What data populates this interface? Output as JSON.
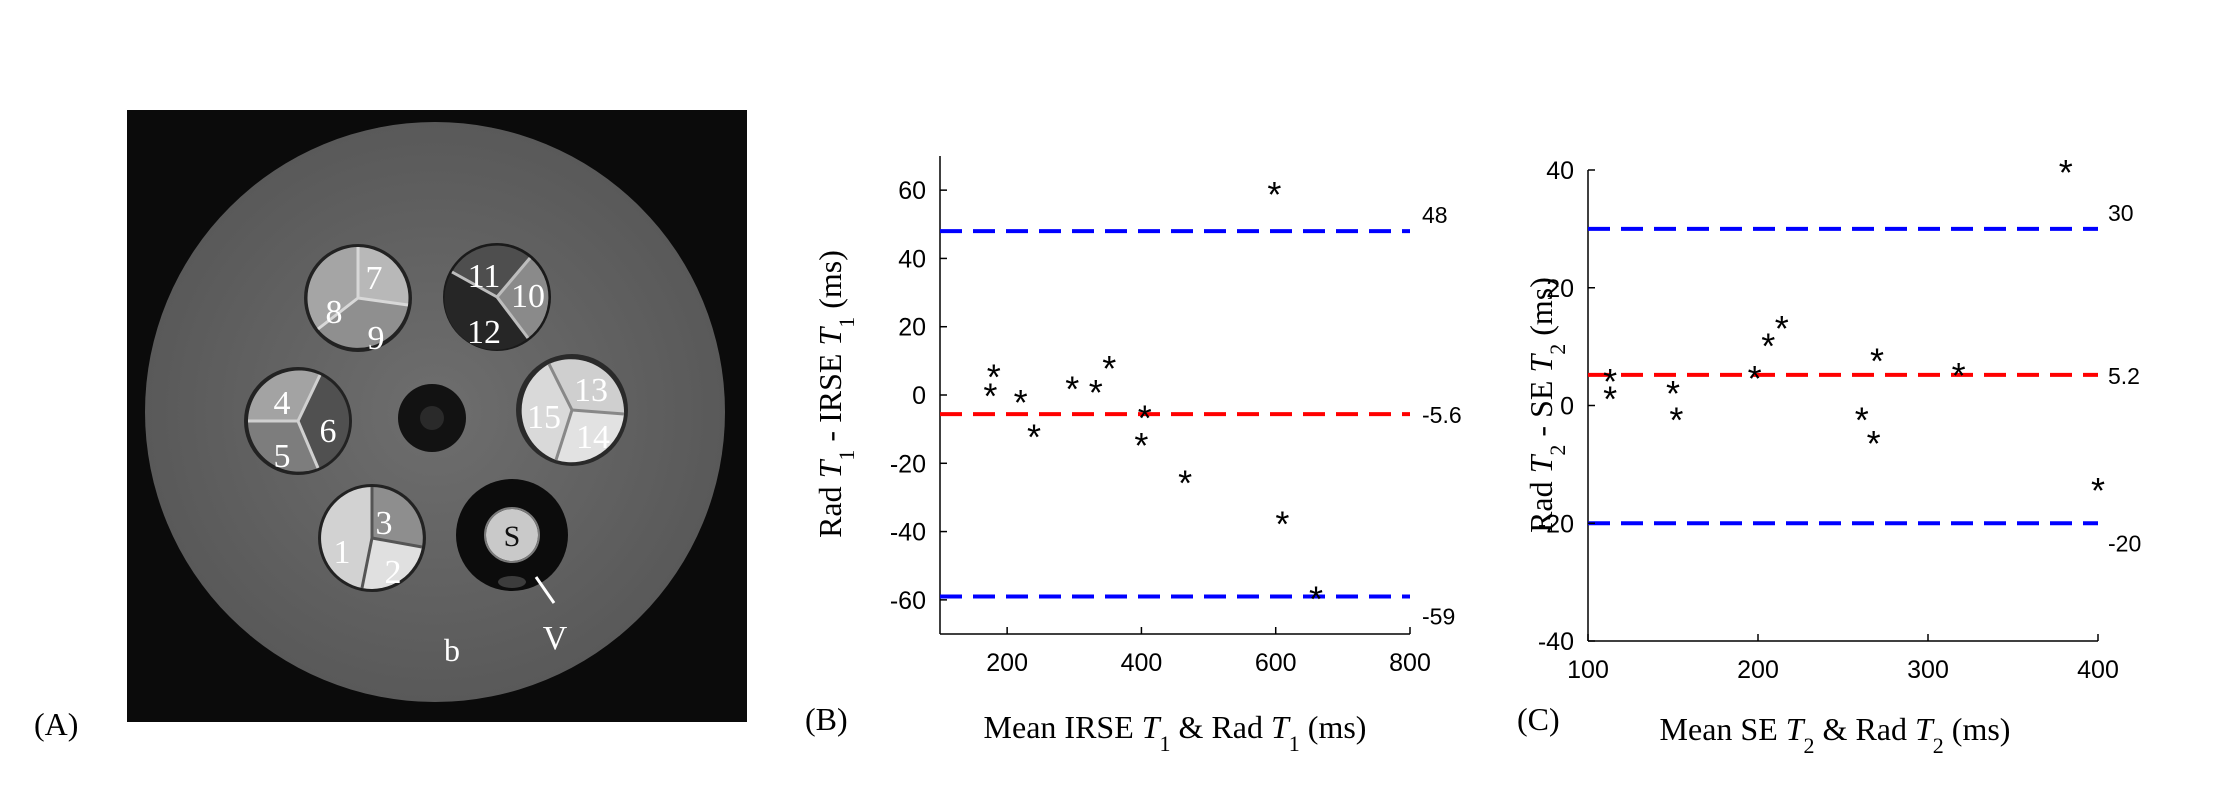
{
  "panel_a": {
    "label": "(A)",
    "vial_numbers": [
      "1",
      "2",
      "3",
      "4",
      "5",
      "6",
      "7",
      "8",
      "9",
      "10",
      "11",
      "12",
      "13",
      "14",
      "15"
    ],
    "center_vial_label": "S",
    "annotation_b": "b",
    "annotation_v": "V"
  },
  "chart_data": [
    {
      "type": "scatter",
      "panel_label": "(B)",
      "title": "",
      "xlabel": "Mean IRSE T1 & Rad T1 (ms)",
      "xlabel_parts": [
        "Mean IRSE ",
        "T",
        "1",
        " & Rad ",
        "T",
        "1",
        " (ms)"
      ],
      "ylabel": "Rad T1 - IRSE T1 (ms)",
      "ylabel_parts": [
        "Rad ",
        "T",
        "1",
        " - IRSE ",
        "T",
        "1",
        " (ms)"
      ],
      "xlim": [
        100,
        800
      ],
      "ylim": [
        -70,
        70
      ],
      "xticks": [
        200,
        400,
        600,
        800
      ],
      "yticks": [
        -60,
        -40,
        -20,
        0,
        20,
        40,
        60
      ],
      "points": [
        {
          "x": 175,
          "y": 0.5
        },
        {
          "x": 180,
          "y": 6
        },
        {
          "x": 220,
          "y": -1.5
        },
        {
          "x": 240,
          "y": -11.5
        },
        {
          "x": 297,
          "y": 2.5
        },
        {
          "x": 332,
          "y": 1.5
        },
        {
          "x": 352,
          "y": 8.5
        },
        {
          "x": 400,
          "y": -14
        },
        {
          "x": 405,
          "y": -6
        },
        {
          "x": 465,
          "y": -25
        },
        {
          "x": 598,
          "y": 59.5
        },
        {
          "x": 610,
          "y": -37
        },
        {
          "x": 660,
          "y": -59
        }
      ],
      "reference_lines": [
        {
          "y": 48,
          "label": "48",
          "color": "#0000ff",
          "kind": "upper limit"
        },
        {
          "y": -5.6,
          "label": "-5.6",
          "color": "#ff0000",
          "kind": "mean"
        },
        {
          "y": -59,
          "label": "-59",
          "color": "#0000ff",
          "kind": "lower limit"
        }
      ],
      "marker": "*",
      "grid": false
    },
    {
      "type": "scatter",
      "panel_label": "(C)",
      "title": "",
      "xlabel": "Mean SE T2 & Rad T2 (ms)",
      "xlabel_parts": [
        "Mean SE ",
        "T",
        "2",
        " & Rad ",
        "T",
        "2",
        " (ms)"
      ],
      "ylabel": "Rad T2 - SE T2 (ms)",
      "ylabel_parts": [
        "Rad ",
        "T",
        "2",
        " - SE ",
        "T",
        "2",
        " (ms)"
      ],
      "xlim": [
        100,
        400
      ],
      "ylim": [
        -40,
        40
      ],
      "xticks": [
        100,
        200,
        300,
        400
      ],
      "yticks": [
        -40,
        -20,
        0,
        20,
        40
      ],
      "points": [
        {
          "x": 113,
          "y": 4.5
        },
        {
          "x": 113,
          "y": 1.5
        },
        {
          "x": 150,
          "y": 2.5
        },
        {
          "x": 152,
          "y": -2
        },
        {
          "x": 198,
          "y": 5
        },
        {
          "x": 206,
          "y": 10.5
        },
        {
          "x": 214,
          "y": 13.5
        },
        {
          "x": 261,
          "y": -2
        },
        {
          "x": 268,
          "y": -6
        },
        {
          "x": 270,
          "y": 8
        },
        {
          "x": 318,
          "y": 5.5
        },
        {
          "x": 381,
          "y": 40
        },
        {
          "x": 400,
          "y": -14
        }
      ],
      "reference_lines": [
        {
          "y": 30,
          "label": "30",
          "color": "#0000ff",
          "kind": "upper limit"
        },
        {
          "y": 5.2,
          "label": "5.2",
          "color": "#ff0000",
          "kind": "mean"
        },
        {
          "y": -20,
          "label": "-20",
          "color": "#0000ff",
          "kind": "lower limit"
        }
      ],
      "marker": "*",
      "grid": false
    }
  ]
}
